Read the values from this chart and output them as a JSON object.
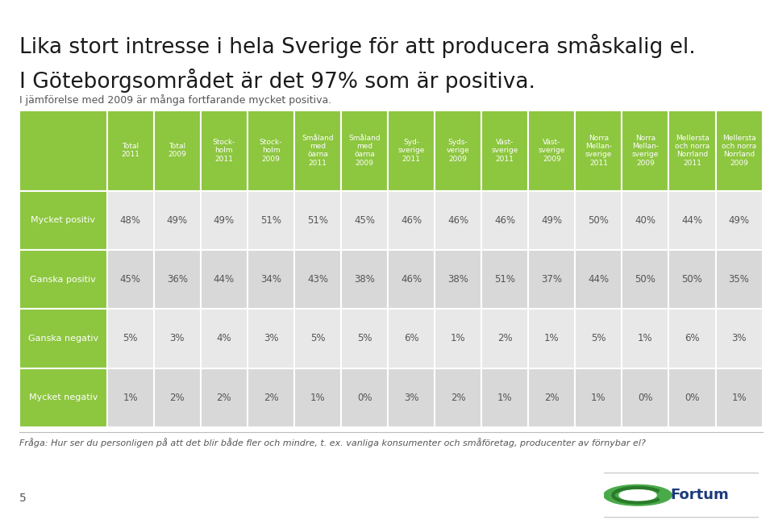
{
  "title_line1": "Lika stort intresse i hela Sverige för att producera småskalig el.",
  "title_line2": "I Göteborgsområdet är det 97% som är positiva.",
  "subtitle": "I jämförelse med 2009 är många fortfarande mycket positiva.",
  "columns": [
    "Total\n2011",
    "Total\n2009",
    "Stock-\nholm\n2011",
    "Stock-\nholm\n2009",
    "Småland\nmed\nöarna\n2011",
    "Småland\nmed\nöarna\n2009",
    "Syd-\nsverige\n2011",
    "Syds-\nverige\n2009",
    "Väst-\nsverige\n2011",
    "Väst-\nsverige\n2009",
    "Norra\nMellan-\nsverige\n2011",
    "Norra\nMellan-\nsverige\n2009",
    "Mellersta\noch norra\nNorrland\n2011",
    "Mellersta\noch norra\nNorrland\n2009"
  ],
  "rows": [
    {
      "label": "Mycket positiv",
      "values": [
        "48%",
        "49%",
        "49%",
        "51%",
        "51%",
        "45%",
        "46%",
        "46%",
        "46%",
        "49%",
        "50%",
        "40%",
        "44%",
        "49%"
      ]
    },
    {
      "label": "Ganska positiv",
      "values": [
        "45%",
        "36%",
        "44%",
        "34%",
        "43%",
        "38%",
        "46%",
        "38%",
        "51%",
        "37%",
        "44%",
        "50%",
        "50%",
        "35%"
      ]
    },
    {
      "label": "Ganska negativ",
      "values": [
        "5%",
        "3%",
        "4%",
        "3%",
        "5%",
        "5%",
        "6%",
        "1%",
        "2%",
        "1%",
        "5%",
        "1%",
        "6%",
        "3%"
      ]
    },
    {
      "label": "Mycket negativ",
      "values": [
        "1%",
        "2%",
        "2%",
        "2%",
        "1%",
        "0%",
        "3%",
        "2%",
        "1%",
        "2%",
        "1%",
        "0%",
        "0%",
        "1%"
      ]
    }
  ],
  "header_bg": "#8dc63f",
  "header_text": "#ffffff",
  "row_label_bg": "#8dc63f",
  "row_label_text": "#ffffff",
  "cell_bg_light": "#e8e8e8",
  "cell_bg_dark": "#d8d8d8",
  "cell_text": "#555555",
  "bg_color": "#ffffff",
  "footnote": "Fråga: Hur ser du personligen på att det blir både fler och mindre, t. ex. vanliga konsumenter och småföretag, producenter av förnybar el?",
  "page_number": "5",
  "title1_fontsize": 19,
  "title2_fontsize": 19,
  "subtitle_fontsize": 9,
  "header_fontsize": 6.5,
  "cell_fontsize": 8.5,
  "label_fontsize": 8
}
